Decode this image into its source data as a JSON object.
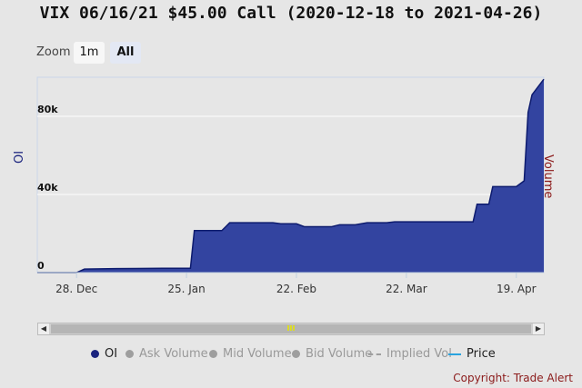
{
  "title": "VIX 06/16/21 $45.00 Call (2020-12-18 to 2021-04-26)",
  "zoom": {
    "label": "Zoom",
    "buttons": [
      "1m",
      "All"
    ],
    "selected": "All"
  },
  "navigator": {
    "left_arrow": "◀",
    "right_arrow": "▶",
    "grip": "III"
  },
  "legend": [
    {
      "label": "OI",
      "active": true,
      "symbol": "dot",
      "color": "#1a237e"
    },
    {
      "label": "Ask Volume",
      "active": false,
      "symbol": "dot",
      "color": "#9e9e9e"
    },
    {
      "label": "Mid Volume",
      "active": false,
      "symbol": "dot",
      "color": "#9e9e9e"
    },
    {
      "label": "Bid Volume",
      "active": false,
      "symbol": "dot",
      "color": "#9e9e9e"
    },
    {
      "label": "Implied Vol",
      "active": false,
      "symbol": "dash",
      "color": "#9e9e9e"
    },
    {
      "label": "Price",
      "active": true,
      "symbol": "line",
      "color": "#29a3df"
    }
  ],
  "copyright": "Copyright: Trade Alert",
  "chart_data": {
    "type": "area",
    "title": "VIX 06/16/21 $45.00 Call (2020-12-18 to 2021-04-26)",
    "ylabel": "OI",
    "y2label": "Volume",
    "ylim": [
      0,
      100000
    ],
    "yticks": [
      0,
      40000,
      80000
    ],
    "ytick_labels": [
      "0",
      "40k",
      "80k"
    ],
    "xlim": [
      "2020-12-18",
      "2021-04-26"
    ],
    "xticks": [
      "2020-12-28",
      "2021-01-25",
      "2021-02-22",
      "2021-03-22",
      "2021-04-19"
    ],
    "xtick_labels": [
      "28. Dec",
      "25. Jan",
      "22. Feb",
      "22. Mar",
      "19. Apr"
    ],
    "grid": true,
    "colors": {
      "fill": "#3344a0",
      "line": "#0d1b6e"
    },
    "series": [
      {
        "name": "OI",
        "x": [
          "2020-12-18",
          "2020-12-28",
          "2020-12-30",
          "2021-01-05",
          "2021-01-12",
          "2021-01-19",
          "2021-01-26",
          "2021-01-27",
          "2021-02-03",
          "2021-02-04",
          "2021-02-05",
          "2021-02-10",
          "2021-02-16",
          "2021-02-18",
          "2021-02-22",
          "2021-02-24",
          "2021-03-03",
          "2021-03-05",
          "2021-03-09",
          "2021-03-12",
          "2021-03-17",
          "2021-03-19",
          "2021-03-26",
          "2021-03-31",
          "2021-04-06",
          "2021-04-08",
          "2021-04-09",
          "2021-04-12",
          "2021-04-13",
          "2021-04-19",
          "2021-04-21",
          "2021-04-22",
          "2021-04-23",
          "2021-04-26"
        ],
        "y": [
          0,
          0,
          1800,
          2000,
          2100,
          2200,
          2200,
          21500,
          21500,
          23500,
          25500,
          25500,
          25500,
          25000,
          25000,
          23500,
          23500,
          24500,
          24500,
          25500,
          25500,
          26000,
          26000,
          26000,
          26000,
          26000,
          35000,
          35000,
          44000,
          44000,
          47000,
          82000,
          91000,
          99000
        ]
      }
    ]
  }
}
